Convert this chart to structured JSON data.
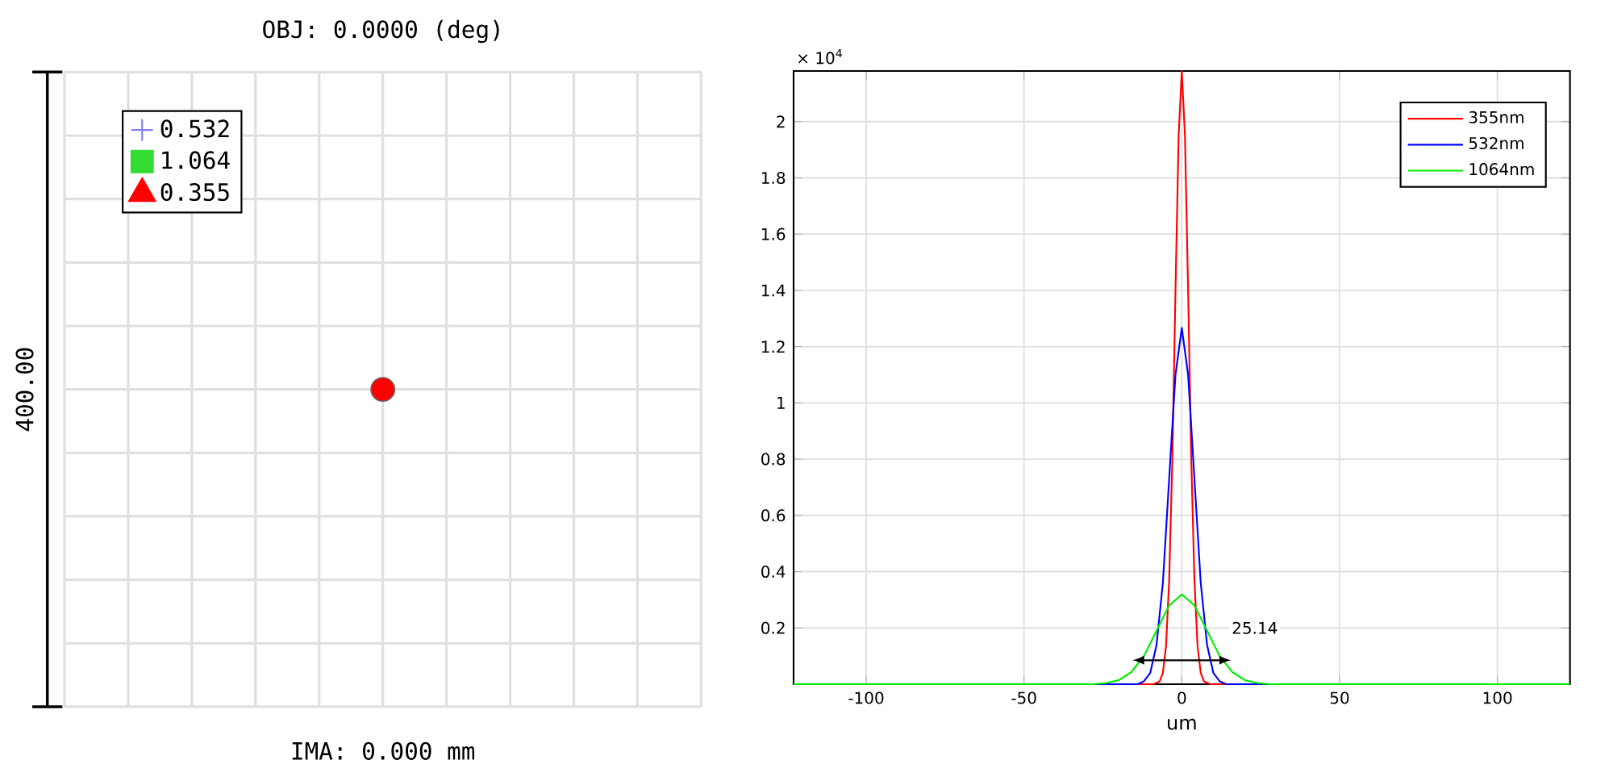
{
  "chart_data": [
    {
      "type": "other",
      "title": "OBJ: 0.0000 (deg)",
      "xlabel": "IMA: 0.000 mm",
      "ylabel": "400.00",
      "legend": "top left",
      "series": [
        {
          "name": "0.532",
          "color": "#8080ff",
          "marker": "cross"
        },
        {
          "name": "1.064",
          "color": "#33dd33",
          "marker": "square"
        },
        {
          "name": "0.355",
          "color": "#ff0000",
          "marker": "triangle"
        }
      ]
    },
    {
      "type": "line",
      "xlabel": "um",
      "xlim": [
        -123,
        123
      ],
      "xticks": [
        -100,
        -50,
        0,
        50,
        100
      ],
      "ylim": [
        0,
        2.18
      ],
      "yticks": [
        0.2,
        0.4,
        0.6,
        0.8,
        1,
        1.2,
        1.4,
        1.6,
        1.8,
        2
      ],
      "grid": true,
      "legend": "top right",
      "marker": "none",
      "line_style": "solid",
      "annotations": [
        "× 10$^{4}$",
        "25.14"
      ],
      "series": [
        {
          "name": "355nm",
          "color": "#ff0000",
          "x": [
            -123,
            -12,
            -9,
            -7,
            -6,
            -5,
            -4,
            -3,
            -2,
            -1,
            0,
            1,
            2,
            3,
            4,
            5,
            6,
            7,
            9,
            12,
            123
          ],
          "values": [
            0,
            0,
            0,
            0.01,
            0.04,
            0.135,
            0.37,
            0.8,
            1.4,
            1.95,
            2.18,
            1.95,
            1.4,
            0.8,
            0.37,
            0.135,
            0.04,
            0.01,
            0,
            0,
            0
          ]
        },
        {
          "name": "532nm",
          "color": "#0000ff",
          "x": [
            -123,
            -16,
            -14,
            -12,
            -10,
            -8,
            -6,
            -4,
            -2,
            0,
            2,
            4,
            6,
            8,
            10,
            12,
            14,
            16,
            123
          ],
          "values": [
            0,
            0,
            0,
            0.01,
            0.04,
            0.14,
            0.36,
            0.73,
            1.1,
            1.267,
            1.1,
            0.73,
            0.36,
            0.14,
            0.04,
            0.01,
            0,
            0,
            0
          ]
        },
        {
          "name": "1064nm",
          "color": "#00ee00",
          "x": [
            -123,
            -28,
            -24,
            -20,
            -16,
            -12,
            -8,
            -4,
            0,
            4,
            8,
            12,
            16,
            20,
            24,
            28,
            123
          ],
          "values": [
            0,
            0,
            0.004,
            0.014,
            0.043,
            0.1,
            0.19,
            0.28,
            0.319,
            0.28,
            0.19,
            0.1,
            0.043,
            0.014,
            0.004,
            0,
            0
          ]
        }
      ]
    }
  ]
}
